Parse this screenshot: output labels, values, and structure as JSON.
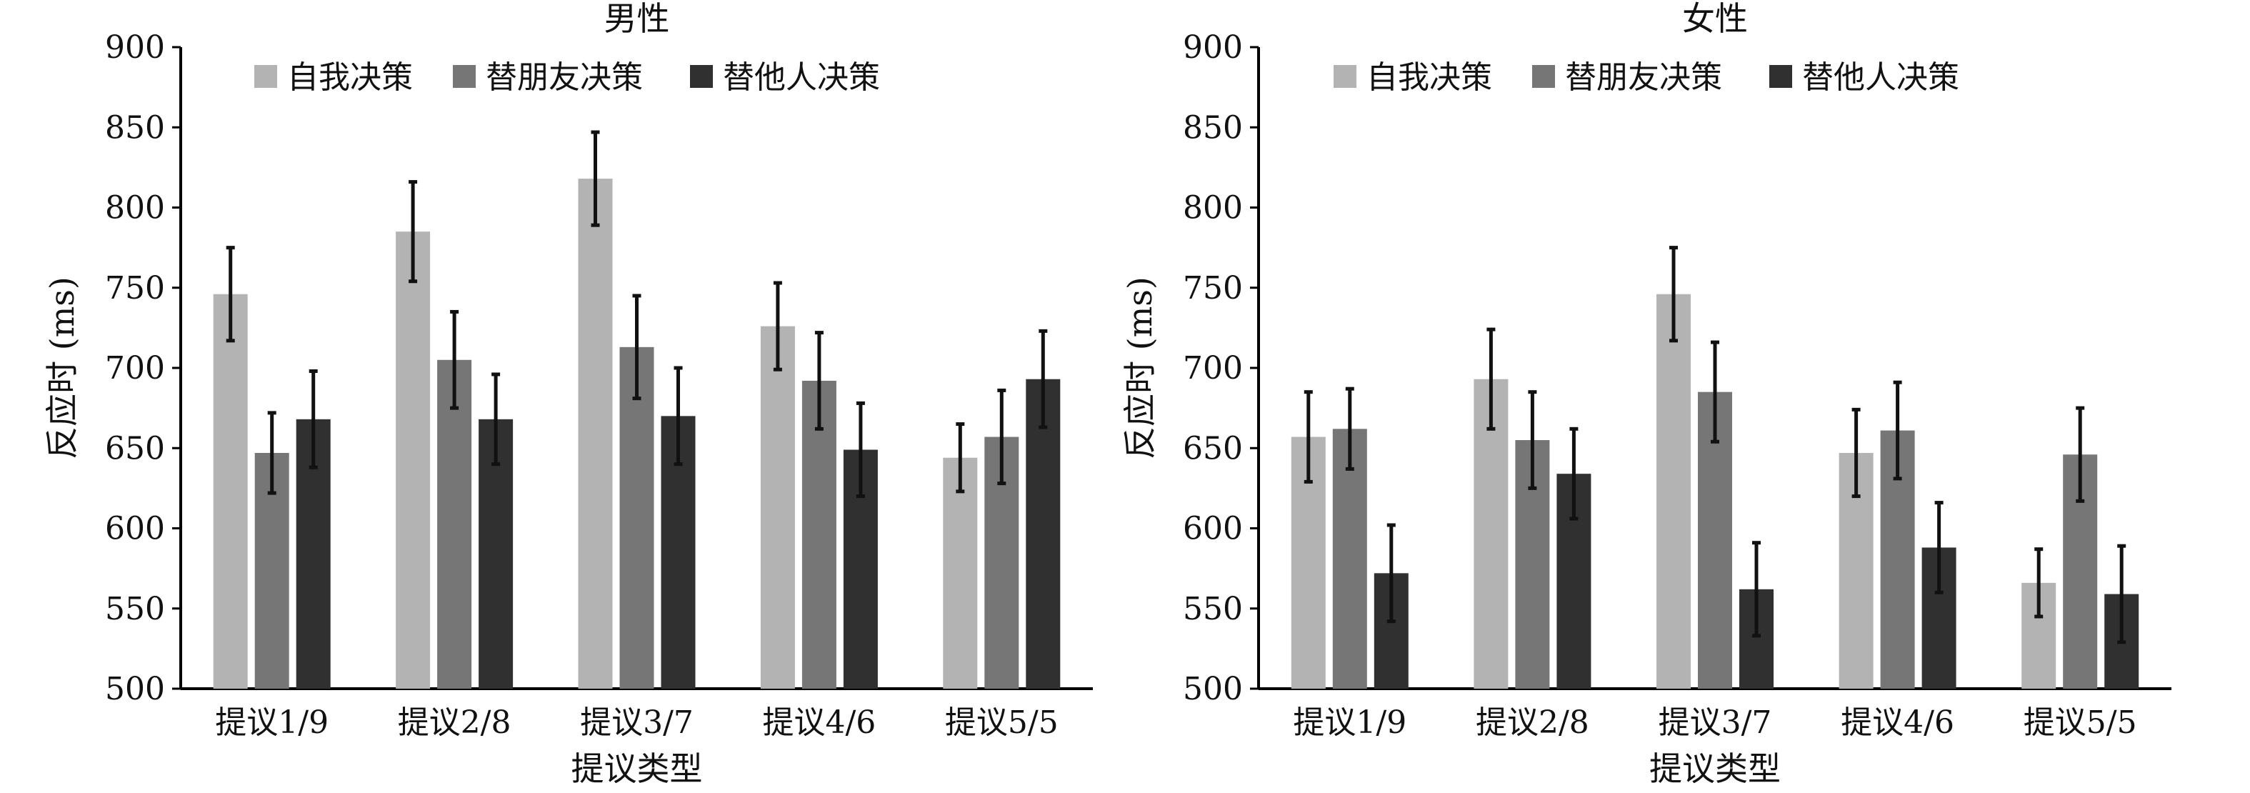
{
  "colors": {
    "self": "#b3b3b3",
    "friend": "#767676",
    "other": "#303030",
    "axis": "#000000",
    "error_bar": "#111111"
  },
  "chart_data": [
    {
      "type": "bar",
      "title": "男性",
      "xlabel": "提议类型",
      "ylabel": "反应时 (ms)",
      "ylim": [
        500,
        900
      ],
      "yticks": [
        500,
        550,
        600,
        650,
        700,
        750,
        800,
        850,
        900
      ],
      "categories": [
        "提议1/9",
        "提议2/8",
        "提议3/7",
        "提议4/6",
        "提议5/5"
      ],
      "legend_position": "top-left",
      "series": [
        {
          "name": "自我决策",
          "color_key": "self",
          "values": [
            746,
            785,
            818,
            726,
            644
          ],
          "error": [
            29,
            31,
            29,
            27,
            21
          ]
        },
        {
          "name": "替朋友决策",
          "color_key": "friend",
          "values": [
            647,
            705,
            713,
            692,
            657
          ],
          "error": [
            25,
            30,
            32,
            30,
            29
          ]
        },
        {
          "name": "替他人决策",
          "color_key": "other",
          "values": [
            668,
            668,
            670,
            649,
            693
          ],
          "error": [
            30,
            28,
            30,
            29,
            30
          ]
        }
      ]
    },
    {
      "type": "bar",
      "title": "女性",
      "xlabel": "提议类型",
      "ylabel": "反应时 (ms)",
      "ylim": [
        500,
        900
      ],
      "yticks": [
        500,
        550,
        600,
        650,
        700,
        750,
        800,
        850,
        900
      ],
      "categories": [
        "提议1/9",
        "提议2/8",
        "提议3/7",
        "提议4/6",
        "提议5/5"
      ],
      "legend_position": "top-left",
      "series": [
        {
          "name": "自我决策",
          "color_key": "self",
          "values": [
            657,
            693,
            746,
            647,
            566
          ],
          "error": [
            28,
            31,
            29,
            27,
            21
          ]
        },
        {
          "name": "替朋友决策",
          "color_key": "friend",
          "values": [
            662,
            655,
            685,
            661,
            646
          ],
          "error": [
            25,
            30,
            31,
            30,
            29
          ]
        },
        {
          "name": "替他人决策",
          "color_key": "other",
          "values": [
            572,
            634,
            562,
            588,
            559
          ],
          "error": [
            30,
            28,
            29,
            28,
            30
          ]
        }
      ]
    }
  ]
}
